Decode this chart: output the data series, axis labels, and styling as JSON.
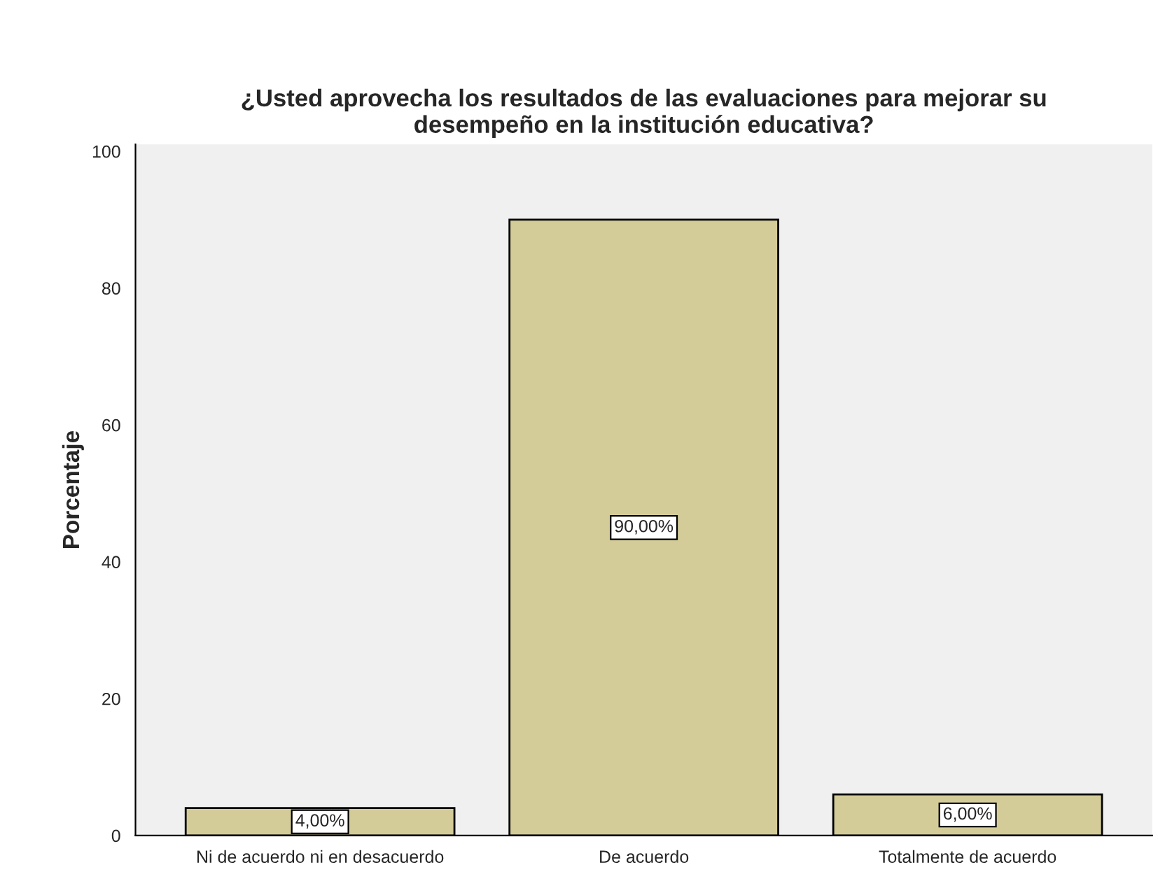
{
  "chart_data": {
    "type": "bar",
    "title": "¿Usted aprovecha los resultados de las evaluaciones para mejorar su\ndesempeño en la institución educativa?",
    "ylabel": "Porcentaje",
    "categories": [
      "Ni de acuerdo ni en desacuerdo",
      "De acuerdo",
      "Totalmente de acuerdo"
    ],
    "values": [
      4,
      90,
      6
    ],
    "color": "#d4cc98",
    "value_labels": [
      "4,00%",
      "90,00%",
      "6,00%"
    ],
    "ylim": [
      0,
      101
    ],
    "yticks": [
      0,
      20,
      40,
      60,
      80,
      100
    ],
    "grid": false
  }
}
